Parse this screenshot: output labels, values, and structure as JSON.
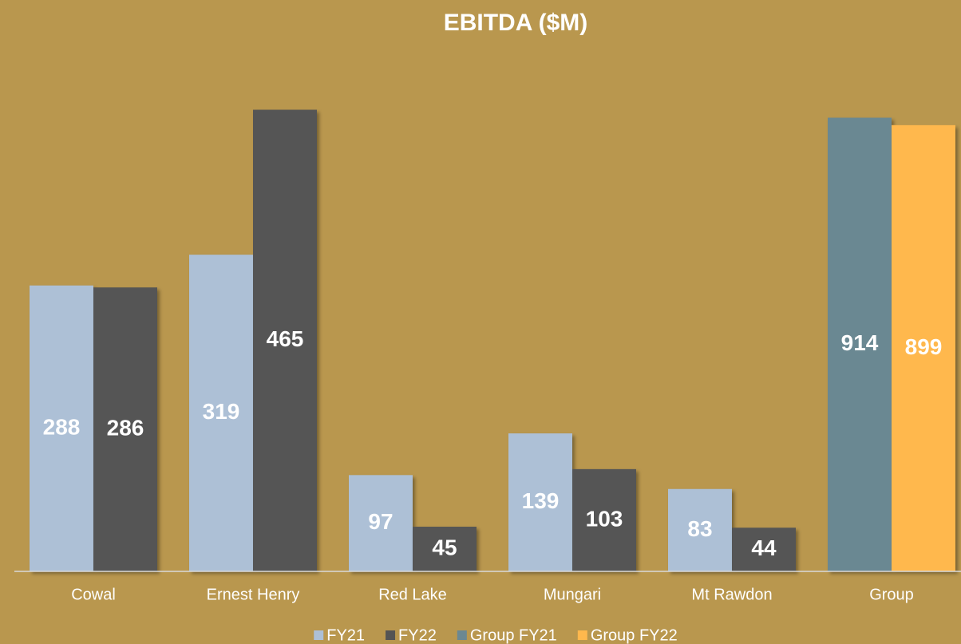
{
  "chart_data": {
    "type": "bar",
    "title": "EBITDA ($M)",
    "categories": [
      "Cowal",
      "Ernest Henry",
      "Red Lake",
      "Mungari",
      "Mt Rawdon",
      "Group"
    ],
    "series": [
      {
        "name": "FY21",
        "color": "#adc0d6",
        "values": [
          288,
          319,
          97,
          139,
          83,
          null
        ]
      },
      {
        "name": "FY22",
        "color": "#545454",
        "values": [
          286,
          465,
          45,
          103,
          44,
          null
        ]
      },
      {
        "name": "Group FY21",
        "color": "#6b8892",
        "axis": "y2",
        "values": [
          null,
          null,
          null,
          null,
          null,
          914
        ]
      },
      {
        "name": "Group FY22",
        "color": "#ffb84d",
        "axis": "y2",
        "values": [
          null,
          null,
          null,
          null,
          null,
          899
        ]
      }
    ],
    "ylim": [
      0,
      500
    ],
    "y2lim": [
      0,
      1000
    ],
    "grid": false,
    "legend": "bottom"
  }
}
